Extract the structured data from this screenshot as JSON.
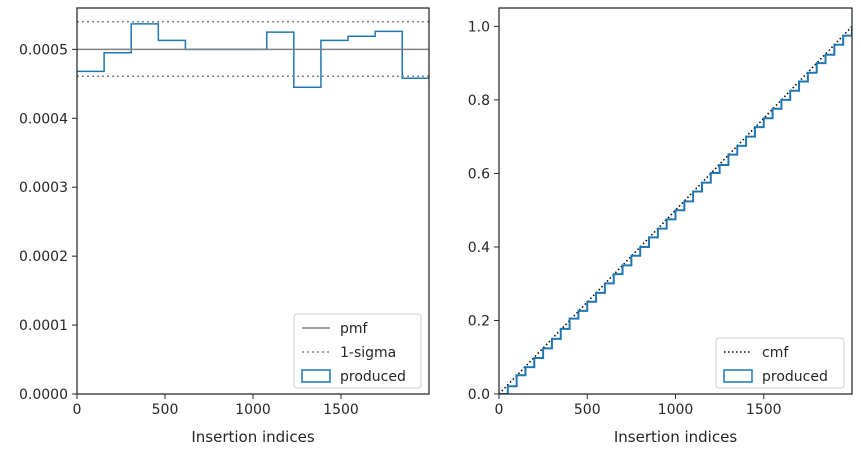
{
  "chart_data": [
    {
      "type": "histogram",
      "xlabel": "Insertion indices",
      "ylabel": "",
      "xlim": [
        0,
        2000
      ],
      "ylim": [
        0,
        0.00056
      ],
      "xticks": [
        0,
        500,
        1000,
        1500
      ],
      "xtick_labels": [
        "0",
        "500",
        "1000",
        "1500"
      ],
      "yticks": [
        0,
        0.0001,
        0.0002,
        0.0003,
        0.0004,
        0.0005
      ],
      "ytick_labels": [
        "0.0000",
        "0.0001",
        "0.0002",
        "0.0003",
        "0.0004",
        "0.0005"
      ],
      "bin_edges": [
        0,
        154,
        308,
        462,
        616,
        770,
        924,
        1078,
        1232,
        1386,
        1540,
        1694,
        1848,
        2000
      ],
      "series": [
        {
          "name": "produced",
          "kind": "step",
          "color": "#1f77b4",
          "values": [
            0.000468,
            0.000495,
            0.000537,
            0.000513,
            0.0005,
            0.0005,
            0.0005,
            0.000525,
            0.000445,
            0.000513,
            0.000519,
            0.000526,
            0.000458
          ]
        },
        {
          "name": "pmf",
          "kind": "hline",
          "color": "#808080",
          "value": 0.0005
        },
        {
          "name": "1-sigma",
          "kind": "hline-dotted",
          "color": "#808080",
          "values": [
            0.000461,
            0.00054
          ]
        }
      ],
      "legend": {
        "position": "lower right",
        "entries": [
          "pmf",
          "1-sigma",
          "produced"
        ]
      },
      "grid": false
    },
    {
      "type": "line",
      "xlabel": "Insertion indices",
      "ylabel": "",
      "xlim": [
        0,
        2000
      ],
      "ylim": [
        0,
        1.05
      ],
      "xticks": [
        0,
        500,
        1000,
        1500
      ],
      "xtick_labels": [
        "0",
        "500",
        "1000",
        "1500"
      ],
      "yticks": [
        0,
        0.2,
        0.4,
        0.6,
        0.8,
        1.0
      ],
      "ytick_labels": [
        "0.0",
        "0.2",
        "0.4",
        "0.6",
        "0.8",
        "1.0"
      ],
      "series": [
        {
          "name": "cmf",
          "kind": "dotted",
          "color": "#000000",
          "x": [
            0,
            2000
          ],
          "y": [
            0,
            1.0
          ]
        },
        {
          "name": "produced",
          "kind": "step",
          "color": "#1f77b4",
          "x": [
            0,
            50,
            100,
            150,
            200,
            250,
            300,
            350,
            400,
            450,
            500,
            550,
            600,
            650,
            700,
            750,
            800,
            850,
            900,
            950,
            1000,
            1050,
            1100,
            1150,
            1200,
            1250,
            1300,
            1350,
            1400,
            1450,
            1500,
            1550,
            1600,
            1650,
            1700,
            1750,
            1800,
            1850,
            1900,
            1950,
            2000
          ],
          "y": [
            0,
            0.021,
            0.051,
            0.073,
            0.098,
            0.124,
            0.15,
            0.177,
            0.205,
            0.226,
            0.251,
            0.275,
            0.301,
            0.326,
            0.35,
            0.376,
            0.4,
            0.426,
            0.45,
            0.475,
            0.5,
            0.524,
            0.551,
            0.575,
            0.601,
            0.623,
            0.651,
            0.675,
            0.7,
            0.726,
            0.75,
            0.776,
            0.8,
            0.825,
            0.85,
            0.874,
            0.9,
            0.923,
            0.95,
            0.975,
            1.0
          ]
        }
      ],
      "legend": {
        "position": "lower right",
        "entries": [
          "cmf",
          "produced"
        ]
      },
      "grid": false
    }
  ]
}
